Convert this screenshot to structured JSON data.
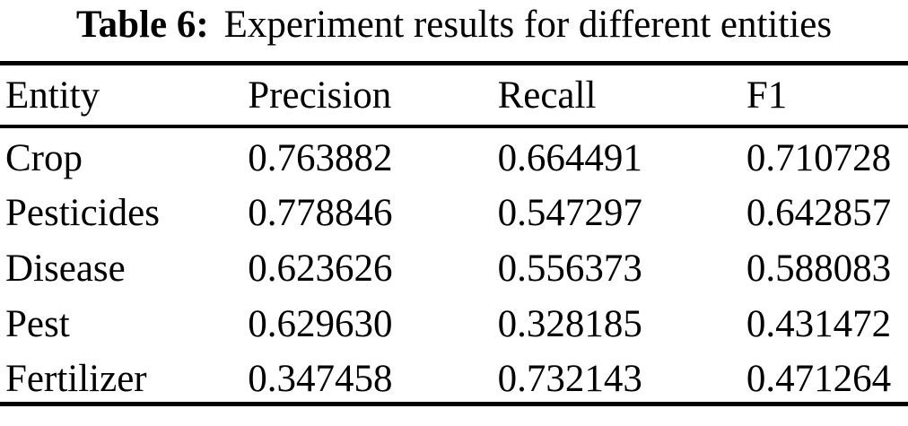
{
  "caption": {
    "label": "Table 6:",
    "text": "Experiment results for different entities"
  },
  "table": {
    "columns": [
      "Entity",
      "Precision",
      "Recall",
      "F1"
    ],
    "rows": [
      [
        "Crop",
        "0.763882",
        "0.664491",
        "0.710728"
      ],
      [
        "Pesticides",
        "0.778846",
        "0.547297",
        "0.642857"
      ],
      [
        "Disease",
        "0.623626",
        "0.556373",
        "0.588083"
      ],
      [
        "Pest",
        "0.629630",
        "0.328185",
        "0.431472"
      ],
      [
        "Fertilizer",
        "0.347458",
        "0.732143",
        "0.471264"
      ]
    ]
  },
  "colors": {
    "text": "#000000",
    "background": "#ffffff",
    "rule": "#000000"
  }
}
